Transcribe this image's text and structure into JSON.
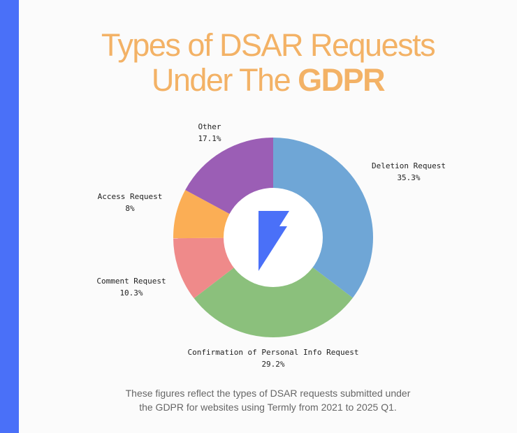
{
  "title": {
    "line1": "Types of DSAR Requests",
    "line2_prefix": "Under The ",
    "line2_bold": "GDPR"
  },
  "accent_color": "#4a70f8",
  "title_color": "#f3b266",
  "center_icon": "termly-bolt-logo",
  "chart_data": {
    "type": "pie",
    "variant": "donut",
    "start": "12 o'clock, clockwise",
    "slices": [
      {
        "label": "Deletion Request",
        "value": 35.3,
        "display": "35.3%",
        "color": "#6fa6d6"
      },
      {
        "label": "Confirmation of Personal Info Request",
        "value": 29.2,
        "display": "29.2%",
        "color": "#8bc07c"
      },
      {
        "label": "Comment Request",
        "value": 10.3,
        "display": "10.3%",
        "color": "#ef8a8a"
      },
      {
        "label": "Access Request",
        "value": 8,
        "display": "8%",
        "color": "#fbae55"
      },
      {
        "label": "Other",
        "value": 17.1,
        "display": "17.1%",
        "color": "#9b5eb5"
      }
    ]
  },
  "footnote": {
    "line1": "These figures reflect the types of DSAR requests submitted under",
    "line2": "the GDPR for websites using Termly from 2021 to 2025 Q1."
  }
}
